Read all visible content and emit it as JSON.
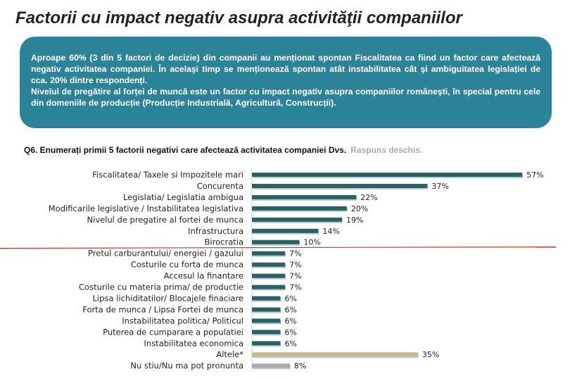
{
  "title": "Factorii cu impact negativ asupra activităţii companiilor",
  "summary": {
    "p1": "Aproape 60% (3 din 5 factori de decizie) din companii au menționat spontan Fiscalitatea ca fiind un factor care afectează negativ activitatea companiei. În acelaşi timp se menționează spontan atât instabilitatea cât şi ambiguitatea legislației de cca. 20% dintre respondenți.",
    "p2": "Nivelul de pregătire al forței de muncă este un factor cu impact negativ asupra companiilor româneşti, în special pentru cele din domeniile de producție (Producție Industrială, Agricultură, Construcții)."
  },
  "question": "Q6. Enumerați primii 5 factorii negativi care afectează activitatea companiei Dvs.",
  "question_note": "Raspuns deschis.",
  "colors": {
    "main": "#2d5f66",
    "other": "#c9b68e",
    "dontknow": "#a9a9a9",
    "divider": "#cc3333"
  },
  "chart_data": {
    "type": "bar",
    "orientation": "horizontal",
    "unit": "%",
    "xlim": [
      0,
      60
    ],
    "categories": [
      "Fiscalitatea/ Taxele si Impozitele mari",
      "Concurenta",
      "Legislatia/ Legislatia ambigua",
      "Modificarile legislative / Instabilitatea legislativa",
      "Nivelul de pregatire al fortei de munca",
      "Infrastructura",
      "Birocratia",
      "Pretul carburantului/ energiei / gazului",
      "Costurile cu forta de munca",
      "Accesul la finantare",
      "Costurile cu materia prima/ de productie",
      "Lipsa lichiditatilor/ Blocajele finaciare",
      "Forta de munca / Lipsa Fortei de munca",
      "Instabilitatea politica/ Politicul",
      "Puterea de cumparare a populatiei",
      "Instabilitatea economica",
      "Altele*",
      "Nu stiu/Nu ma pot pronunta"
    ],
    "values": [
      57,
      37,
      22,
      20,
      19,
      14,
      10,
      7,
      7,
      7,
      7,
      6,
      6,
      6,
      6,
      6,
      35,
      8
    ],
    "labels": [
      "57%",
      "37%",
      "22%",
      "20%",
      "19%",
      "14%",
      "10%",
      "7%",
      "7%",
      "7%",
      "7%",
      "6%",
      "6%",
      "6%",
      "6%",
      "6%",
      "35%",
      "8%"
    ],
    "divider_after_index": 6
  }
}
